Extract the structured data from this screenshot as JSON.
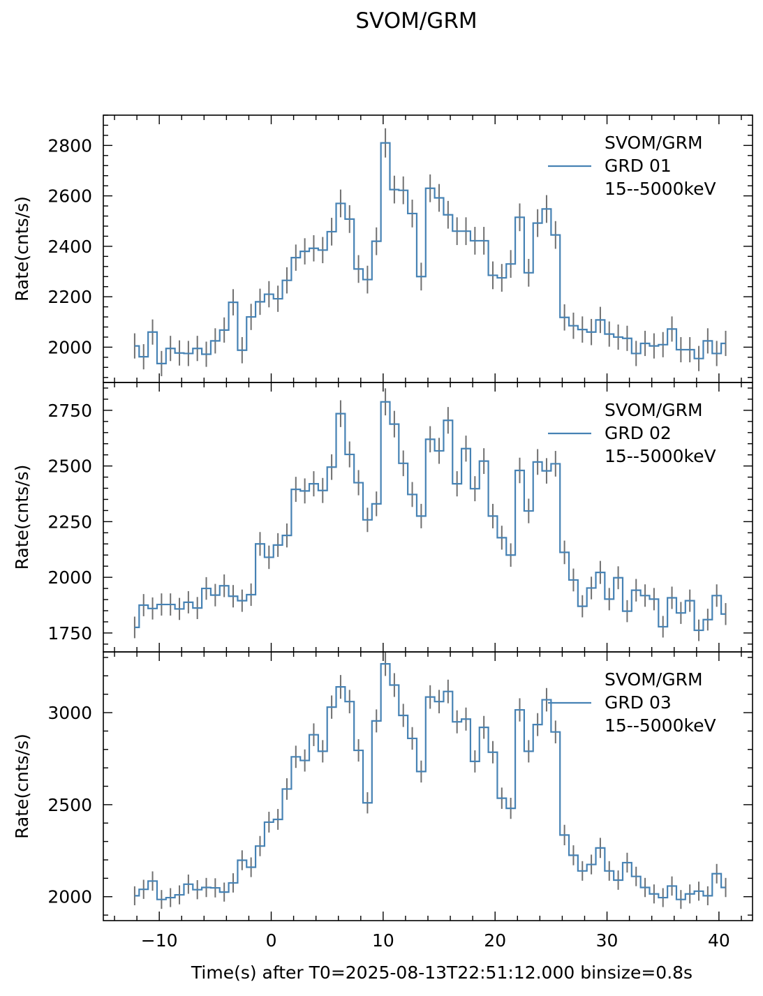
{
  "figure": {
    "title": "SVOM/GRM",
    "xlabel": "Time(s) after T0=2025-08-13T22:51:12.000 binsize=0.8s"
  },
  "colors": {
    "line": "#4682b4",
    "errorbar": "#707070",
    "axes": "#000000"
  },
  "chart_data": [
    {
      "type": "line",
      "drawstyle": "steps-mid",
      "title": "",
      "ylabel": "Rate(cnts/s)",
      "xlabel": "",
      "xlim": [
        -15.0,
        43.0
      ],
      "ylim": [
        1860,
        2920
      ],
      "yticks": [
        2000,
        2200,
        2400,
        2600,
        2800
      ],
      "xticks": [
        -10,
        0,
        10,
        20,
        30,
        40
      ],
      "legend": {
        "position": "top-right",
        "label": "SVOM/GRM\n GRD 01\n15--5000keV"
      },
      "series": [
        {
          "name": "SVOM/GRM\n GRD 01\n15--5000keV",
          "x_start": -12.2,
          "x_step": 0.8,
          "values": [
            2005,
            1962,
            2060,
            1935,
            1995,
            1977,
            1975,
            1995,
            1972,
            2025,
            2068,
            2178,
            1988,
            2120,
            2180,
            2210,
            2192,
            2265,
            2355,
            2380,
            2392,
            2385,
            2458,
            2570,
            2508,
            2310,
            2268,
            2420,
            2810,
            2625,
            2622,
            2530,
            2280,
            2630,
            2592,
            2525,
            2460,
            2460,
            2422,
            2422,
            2285,
            2275,
            2330,
            2515,
            2295,
            2492,
            2548,
            2445,
            2118,
            2085,
            2070,
            2060,
            2108,
            2052,
            2040,
            2035,
            1975,
            2015,
            2005,
            2010,
            2072,
            1990,
            1990,
            1955,
            2025,
            1975,
            2015
          ],
          "errors": [
            50,
            50,
            50,
            50,
            50,
            50,
            50,
            50,
            50,
            50,
            50,
            52,
            52,
            52,
            52,
            52,
            52,
            52,
            52,
            52,
            52,
            52,
            55,
            55,
            55,
            55,
            55,
            55,
            58,
            55,
            55,
            55,
            55,
            55,
            55,
            55,
            55,
            55,
            55,
            55,
            55,
            55,
            55,
            55,
            55,
            55,
            55,
            55,
            52,
            52,
            52,
            52,
            52,
            50,
            50,
            50,
            50,
            50,
            50,
            50,
            50,
            50,
            50,
            50,
            50,
            50,
            50
          ]
        }
      ]
    },
    {
      "type": "line",
      "drawstyle": "steps-mid",
      "title": "",
      "ylabel": "Rate(cnts/s)",
      "xlabel": "",
      "xlim": [
        -15.0,
        43.0
      ],
      "ylim": [
        1665,
        2875
      ],
      "yticks": [
        1750,
        2000,
        2250,
        2500,
        2750
      ],
      "xticks": [
        -10,
        0,
        10,
        20,
        30,
        40
      ],
      "legend": {
        "position": "top-right",
        "label": "SVOM/GRM\n GRD 02\n15--5000keV"
      },
      "series": [
        {
          "name": "SVOM/GRM\n GRD 02\n15--5000keV",
          "x_start": -12.2,
          "x_step": 0.8,
          "values": [
            1775,
            1875,
            1860,
            1878,
            1878,
            1858,
            1888,
            1862,
            1950,
            1920,
            1962,
            1915,
            1895,
            1922,
            2150,
            2090,
            2145,
            2188,
            2395,
            2388,
            2420,
            2390,
            2495,
            2735,
            2552,
            2425,
            2258,
            2330,
            2788,
            2688,
            2512,
            2372,
            2275,
            2620,
            2568,
            2705,
            2420,
            2578,
            2398,
            2522,
            2275,
            2178,
            2100,
            2480,
            2298,
            2518,
            2478,
            2510,
            2112,
            1988,
            1870,
            1952,
            2022,
            1902,
            1998,
            1848,
            1942,
            1918,
            1902,
            1778,
            1908,
            1840,
            1895,
            1762,
            1810,
            1918,
            1835
          ]
        }
      ]
    },
    {
      "type": "line",
      "drawstyle": "steps-mid",
      "title": "",
      "ylabel": "Rate(cnts/s)",
      "xlabel": "Time(s) after T0=2025-08-13T22:51:12.000 binsize=0.8s",
      "xlim": [
        -15.0,
        43.0
      ],
      "ylim": [
        1870,
        3330
      ],
      "yticks": [
        2000,
        2500,
        3000
      ],
      "xticks": [
        -10,
        0,
        10,
        20,
        30,
        40
      ],
      "legend": {
        "position": "top-right",
        "label": "SVOM/GRM\n GRD 03\n15--5000keV"
      },
      "series": [
        {
          "name": "SVOM/GRM\n GRD 03\n15--5000keV",
          "x_start": -12.2,
          "x_step": 0.8,
          "values": [
            2005,
            2040,
            2085,
            1985,
            1995,
            2010,
            2068,
            2038,
            2050,
            2048,
            2025,
            2075,
            2198,
            2160,
            2275,
            2405,
            2420,
            2585,
            2760,
            2740,
            2880,
            2790,
            3030,
            3140,
            3060,
            2795,
            2510,
            2955,
            3265,
            3150,
            2985,
            2860,
            2680,
            3085,
            3060,
            3115,
            2950,
            2965,
            2735,
            2920,
            2785,
            2535,
            2480,
            3015,
            2790,
            2935,
            3070,
            2895,
            2335,
            2225,
            2140,
            2175,
            2265,
            2140,
            2090,
            2185,
            2110,
            2050,
            2015,
            1995,
            2058,
            1985,
            2015,
            2030,
            2005,
            2125,
            2050
          ]
        }
      ]
    }
  ]
}
